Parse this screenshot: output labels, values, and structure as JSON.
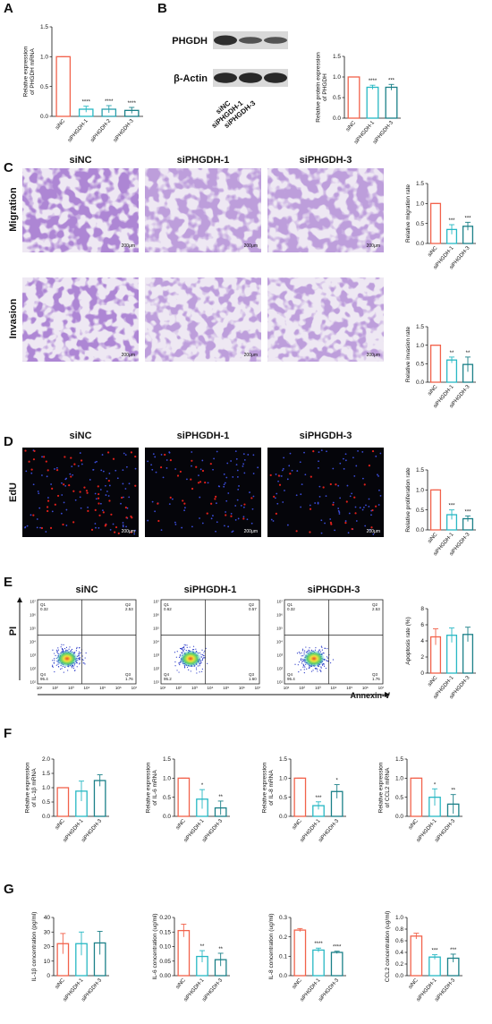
{
  "letters": [
    "A",
    "B",
    "C",
    "D",
    "E",
    "F",
    "G"
  ],
  "blot": {
    "proteins": [
      "PHGDH",
      "β-Actin"
    ],
    "lanes": [
      "siNC",
      "siPHGDH-1",
      "siPHGDH-3"
    ]
  },
  "micrographs": {
    "columns": [
      "siNC",
      "siPHGDH-1",
      "siPHGDH-3"
    ],
    "rows": [
      "Migration",
      "Invasion"
    ],
    "scale": "200μm"
  },
  "edu": {
    "columns": [
      "siNC",
      "siPHGDH-1",
      "siPHGDH-3"
    ],
    "row": "EdU",
    "scale": "200μm"
  },
  "flow": {
    "columns": [
      "siNC",
      "siPHGDH-1",
      "siPHGDH-3"
    ],
    "y_label": "PI",
    "x_label": "Annexin-V",
    "ticks": [
      "10¹",
      "10²",
      "10³",
      "10⁴",
      "10⁵",
      "10⁶",
      "10⁷"
    ],
    "quadrants": [
      "Q1",
      "Q2",
      "Q4",
      "Q3"
    ],
    "percents": [
      [
        "0.32",
        "2.53",
        "95.4",
        "1.76"
      ],
      [
        "0.62",
        "0.57",
        "95.2",
        "1.60"
      ],
      [
        "0.32",
        "2.53",
        "95.4",
        "1.76"
      ]
    ]
  },
  "chart_data": [
    {
      "type": "bar",
      "ylabel": [
        "Relative expression",
        "of PHGDH mRNA"
      ],
      "categories": [
        "siNC",
        "siPHGDH-1",
        "siPHGDH-2",
        "siPHGDH-3"
      ],
      "values": [
        1,
        0.12,
        0.12,
        0.1
      ],
      "errors": [
        0,
        0.05,
        0.06,
        0.05
      ],
      "significance": [
        null,
        "****",
        "****",
        "****"
      ],
      "colors": [
        "#f2624b",
        "#27b8c4",
        "#2aa0ad",
        "#1b8088"
      ],
      "ylim": [
        0,
        1.5
      ],
      "yticks": [
        {
          "value": 0,
          "label": "0.0"
        },
        0.5,
        {
          "value": 1,
          "label": "1.0"
        },
        1.5
      ]
    },
    {
      "type": "bar",
      "ylabel": [
        "Relative protein expression",
        "of PHGDH"
      ],
      "categories": [
        "siNC",
        "siPHGDH-1",
        "siPHGDH-3"
      ],
      "values": [
        1,
        0.75,
        0.75
      ],
      "errors": [
        0,
        0.05,
        0.07
      ],
      "significance": [
        null,
        "****",
        "***"
      ],
      "colors": [
        "#f2624b",
        "#27b8c4",
        "#1b8088"
      ],
      "ylim": [
        0,
        1.5
      ],
      "yticks": [
        {
          "value": 0,
          "label": "0.0"
        },
        0.5,
        {
          "value": 1,
          "label": "1.0"
        },
        1.5
      ]
    },
    {
      "type": "bar",
      "ylabel": [
        "Relative migration rate"
      ],
      "categories": [
        "siNC",
        "siPHGDH-1",
        "siPHGDH-3"
      ],
      "values": [
        1,
        0.35,
        0.43
      ],
      "errors": [
        0,
        0.12,
        0.1
      ],
      "significance": [
        null,
        "***",
        "***"
      ],
      "colors": [
        "#f2624b",
        "#27b8c4",
        "#1b8088"
      ],
      "ylim": [
        0,
        1.5
      ],
      "yticks": [
        {
          "value": 0,
          "label": "0.0"
        },
        0.5,
        {
          "value": 1,
          "label": "1.0"
        },
        1.5
      ]
    },
    {
      "type": "bar",
      "ylabel": [
        "Relative invasion rate"
      ],
      "categories": [
        "siNC",
        "siPHGDH-1",
        "siPHGDH-3"
      ],
      "values": [
        1,
        0.6,
        0.48
      ],
      "errors": [
        0,
        0.08,
        0.2
      ],
      "significance": [
        null,
        "**",
        "**"
      ],
      "colors": [
        "#f2624b",
        "#27b8c4",
        "#1b8088"
      ],
      "ylim": [
        0,
        1.5
      ],
      "yticks": [
        {
          "value": 0,
          "label": "0.0"
        },
        0.5,
        {
          "value": 1,
          "label": "1.0"
        },
        1.5
      ]
    },
    {
      "type": "bar",
      "ylabel": [
        "Relative proliferation rate"
      ],
      "categories": [
        "siNC",
        "siPHGDH-1",
        "siPHGDH-3"
      ],
      "values": [
        1,
        0.38,
        0.28
      ],
      "errors": [
        0,
        0.12,
        0.07
      ],
      "significance": [
        null,
        "***",
        "***"
      ],
      "colors": [
        "#f2624b",
        "#27b8c4",
        "#1b8088"
      ],
      "ylim": [
        0,
        1.5
      ],
      "yticks": [
        {
          "value": 0,
          "label": "0.0"
        },
        0.5,
        {
          "value": 1,
          "label": "1.0"
        },
        1.5
      ]
    },
    {
      "type": "bar",
      "ylabel": [
        "Apoptosis rate (%)"
      ],
      "categories": [
        "siNC",
        "siPHGDH-1",
        "siPHGDH-3"
      ],
      "values": [
        4.5,
        4.7,
        4.8
      ],
      "errors": [
        1,
        0.9,
        0.9
      ],
      "significance": [
        null,
        null,
        null
      ],
      "colors": [
        "#f2624b",
        "#27b8c4",
        "#1b8088"
      ],
      "ylim": [
        0,
        8
      ],
      "yticks": [
        0,
        2,
        4,
        6,
        8
      ]
    },
    {
      "type": "bar",
      "ylabel": [
        "Relative expression",
        "of IL-1β mRNA"
      ],
      "categories": [
        "siNC",
        "siPHGDH-1",
        "siPHGDH-3"
      ],
      "values": [
        1,
        0.88,
        1.25
      ],
      "errors": [
        0,
        0.35,
        0.2
      ],
      "significance": [
        null,
        null,
        null
      ],
      "colors": [
        "#f2624b",
        "#27b8c4",
        "#1b8088"
      ],
      "ylim": [
        0,
        2
      ],
      "yticks": [
        {
          "value": 0,
          "label": "0.0"
        },
        0.5,
        {
          "value": 1,
          "label": "1.0"
        },
        1.5,
        {
          "value": 2,
          "label": "2.0"
        }
      ]
    },
    {
      "type": "bar",
      "ylabel": [
        "Relative expression",
        "of IL-6 mRNA"
      ],
      "categories": [
        "siNC",
        "siPHGDH-1",
        "siPHGDH-3"
      ],
      "values": [
        1,
        0.45,
        0.22
      ],
      "errors": [
        0,
        0.25,
        0.18
      ],
      "significance": [
        null,
        "*",
        "**"
      ],
      "colors": [
        "#f2624b",
        "#27b8c4",
        "#1b8088"
      ],
      "ylim": [
        0,
        1.5
      ],
      "yticks": [
        {
          "value": 0,
          "label": "0.0"
        },
        0.5,
        {
          "value": 1,
          "label": "1.0"
        },
        1.5
      ]
    },
    {
      "type": "bar",
      "ylabel": [
        "Relative expression",
        "of IL-8 mRNA"
      ],
      "categories": [
        "siNC",
        "siPHGDH-1",
        "siPHGDH-3"
      ],
      "values": [
        1,
        0.28,
        0.65
      ],
      "errors": [
        0,
        0.1,
        0.18
      ],
      "significance": [
        null,
        "***",
        "*"
      ],
      "colors": [
        "#f2624b",
        "#27b8c4",
        "#1b8088"
      ],
      "ylim": [
        0,
        1.5
      ],
      "yticks": [
        {
          "value": 0,
          "label": "0.0"
        },
        0.5,
        {
          "value": 1,
          "label": "1.0"
        },
        1.5
      ]
    },
    {
      "type": "bar",
      "ylabel": [
        "Relative expression",
        "of CCL2 mRNA"
      ],
      "categories": [
        "siNC",
        "siPHGDH-1",
        "siPHGDH-3"
      ],
      "values": [
        1,
        0.5,
        0.32
      ],
      "errors": [
        0,
        0.22,
        0.25
      ],
      "significance": [
        null,
        "*",
        "**"
      ],
      "colors": [
        "#f2624b",
        "#27b8c4",
        "#1b8088"
      ],
      "ylim": [
        0,
        1.5
      ],
      "yticks": [
        {
          "value": 0,
          "label": "0.0"
        },
        0.5,
        {
          "value": 1,
          "label": "1.0"
        },
        1.5
      ]
    },
    {
      "type": "bar",
      "ylabel": [
        "IL-1β concentration (pg/ml)"
      ],
      "categories": [
        "siNC",
        "siPHGDH-1",
        "siPHGDH-3"
      ],
      "values": [
        22,
        22,
        22.5
      ],
      "errors": [
        7,
        8,
        8
      ],
      "significance": [
        null,
        null,
        null
      ],
      "colors": [
        "#f2624b",
        "#27b8c4",
        "#1b8088"
      ],
      "ylim": [
        0,
        40
      ],
      "yticks": [
        0,
        10,
        20,
        30,
        40
      ]
    },
    {
      "type": "bar",
      "ylabel": [
        "IL-6 concentration (ug/ml)"
      ],
      "categories": [
        "siNC",
        "siPHGDH-1",
        "siPHGDH-3"
      ],
      "values": [
        0.155,
        0.066,
        0.055
      ],
      "errors": [
        0.022,
        0.02,
        0.022
      ],
      "significance": [
        null,
        "**",
        "**"
      ],
      "colors": [
        "#f2624b",
        "#27b8c4",
        "#1b8088"
      ],
      "ylim": [
        0,
        0.2
      ],
      "yticks": [
        {
          "value": 0,
          "label": "0.00"
        },
        {
          "value": 0.05,
          "label": "0.05"
        },
        {
          "value": 0.1,
          "label": "0.10"
        },
        {
          "value": 0.15,
          "label": "0.15"
        },
        {
          "value": 0.2,
          "label": "0.20"
        }
      ]
    },
    {
      "type": "bar",
      "ylabel": [
        "IL-8 concentration (ug/ml)"
      ],
      "categories": [
        "siNC",
        "siPHGDH-1",
        "siPHGDH-3"
      ],
      "values": [
        0.235,
        0.132,
        0.12
      ],
      "errors": [
        0.008,
        0.01,
        0.006
      ],
      "significance": [
        null,
        "****",
        "****"
      ],
      "colors": [
        "#f2624b",
        "#27b8c4",
        "#1b8088"
      ],
      "ylim": [
        0,
        0.3
      ],
      "yticks": [
        {
          "value": 0,
          "label": "0.0"
        },
        0.1,
        0.2,
        0.3
      ]
    },
    {
      "type": "bar",
      "ylabel": [
        "CCL2 concentration (ug/ml)"
      ],
      "categories": [
        "siNC",
        "siPHGDH-1",
        "siPHGDH-3"
      ],
      "values": [
        0.68,
        0.32,
        0.3
      ],
      "errors": [
        0.05,
        0.04,
        0.07
      ],
      "significance": [
        null,
        "***",
        "***"
      ],
      "colors": [
        "#f2624b",
        "#27b8c4",
        "#1b8088"
      ],
      "ylim": [
        0,
        1
      ],
      "yticks": [
        {
          "value": 0,
          "label": "0.0"
        },
        0.2,
        0.4,
        0.6,
        0.8,
        {
          "value": 1,
          "label": "1.0"
        }
      ]
    }
  ]
}
